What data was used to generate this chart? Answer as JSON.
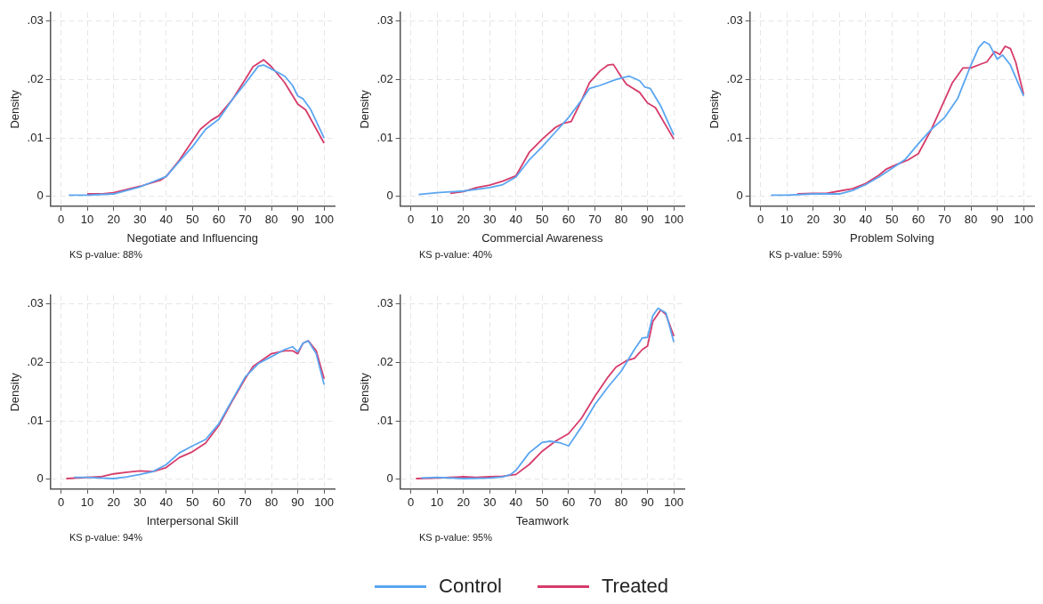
{
  "chart_data": [
    {
      "type": "line",
      "xlabel": "Negotiate and Influencing",
      "ylabel": "Density",
      "annotations": [
        "KS p-value: 88%"
      ],
      "xlim": [
        -4,
        104
      ],
      "ylim": [
        -0.0017,
        0.0315
      ],
      "xticks": [
        0,
        10,
        20,
        30,
        40,
        50,
        60,
        70,
        80,
        90,
        100
      ],
      "yticks": [
        {
          "value": 0,
          "label": "0"
        },
        {
          "value": 0.01,
          "label": ".01"
        },
        {
          "value": 0.02,
          "label": ".02"
        },
        {
          "value": 0.03,
          "label": ".03"
        }
      ],
      "grid": true,
      "legend": "bottom",
      "line_style": "solid",
      "series": [
        {
          "name": "Control",
          "color": "#5aa6f2",
          "x": [
            3,
            10,
            20,
            30,
            35,
            40,
            45,
            50,
            55,
            60,
            65,
            70,
            75,
            77,
            80,
            85,
            88,
            90,
            92,
            95,
            100
          ],
          "values": [
            0.0002,
            0.0002,
            0.0004,
            0.0016,
            0.0025,
            0.0034,
            0.006,
            0.0085,
            0.0115,
            0.0132,
            0.0165,
            0.0193,
            0.0223,
            0.0225,
            0.0218,
            0.0206,
            0.019,
            0.0172,
            0.0167,
            0.0148,
            0.01
          ]
        },
        {
          "name": "Treated",
          "color": "#d63b6a",
          "x": [
            10,
            15,
            20,
            30,
            38,
            40,
            45,
            50,
            53,
            57,
            60,
            65,
            70,
            73,
            77,
            80,
            85,
            90,
            93,
            100
          ],
          "values": [
            0.0004,
            0.0004,
            0.0006,
            0.0017,
            0.0028,
            0.0034,
            0.0062,
            0.0095,
            0.0115,
            0.013,
            0.0138,
            0.0165,
            0.02,
            0.0222,
            0.0234,
            0.0222,
            0.0195,
            0.0158,
            0.0148,
            0.0091
          ]
        }
      ]
    },
    {
      "type": "line",
      "xlabel": "Commercial Awareness",
      "ylabel": "Density",
      "annotations": [
        "KS p-value: 40%"
      ],
      "xlim": [
        -4,
        104
      ],
      "ylim": [
        -0.0017,
        0.0315
      ],
      "xticks": [
        0,
        10,
        20,
        30,
        40,
        50,
        60,
        70,
        80,
        90,
        100
      ],
      "yticks": [
        {
          "value": 0,
          "label": "0"
        },
        {
          "value": 0.01,
          "label": ".01"
        },
        {
          "value": 0.02,
          "label": ".02"
        },
        {
          "value": 0.03,
          "label": ".03"
        }
      ],
      "grid": true,
      "line_style": "solid",
      "series": [
        {
          "color": "#5aa6f2",
          "x": [
            3,
            10,
            20,
            30,
            35,
            40,
            45,
            50,
            55,
            60,
            65,
            68,
            72,
            78,
            83,
            87,
            89,
            91,
            95,
            100
          ],
          "values": [
            0.0003,
            0.0006,
            0.0009,
            0.0015,
            0.002,
            0.0033,
            0.0062,
            0.0085,
            0.011,
            0.0135,
            0.0165,
            0.0185,
            0.019,
            0.02,
            0.0206,
            0.0198,
            0.0187,
            0.0185,
            0.0155,
            0.0105
          ]
        },
        {
          "color": "#d63b6a",
          "x": [
            15,
            20,
            25,
            30,
            35,
            40,
            45,
            50,
            55,
            58,
            61,
            65,
            68,
            72,
            75,
            77,
            80,
            82,
            87,
            90,
            93,
            100
          ],
          "values": [
            0.0005,
            0.0008,
            0.0015,
            0.0019,
            0.0026,
            0.0035,
            0.0075,
            0.0098,
            0.0118,
            0.0125,
            0.0128,
            0.0165,
            0.0195,
            0.0215,
            0.0225,
            0.0226,
            0.0205,
            0.0192,
            0.0178,
            0.016,
            0.0152,
            0.0098
          ]
        }
      ]
    },
    {
      "type": "line",
      "xlabel": "Problem Solving",
      "ylabel": "Density",
      "annotations": [
        "KS p-value: 59%"
      ],
      "xlim": [
        -4,
        104
      ],
      "ylim": [
        -0.0017,
        0.0315
      ],
      "xticks": [
        0,
        10,
        20,
        30,
        40,
        50,
        60,
        70,
        80,
        90,
        100
      ],
      "yticks": [
        {
          "value": 0,
          "label": "0"
        },
        {
          "value": 0.01,
          "label": ".01"
        },
        {
          "value": 0.02,
          "label": ".02"
        },
        {
          "value": 0.03,
          "label": ".03"
        }
      ],
      "grid": true,
      "line_style": "solid",
      "series": [
        {
          "color": "#5aa6f2",
          "x": [
            4,
            10,
            20,
            30,
            35,
            40,
            45,
            50,
            55,
            60,
            65,
            70,
            75,
            80,
            83,
            85,
            87,
            90,
            92,
            95,
            100
          ],
          "values": [
            0.0002,
            0.0002,
            0.0004,
            0.0004,
            0.001,
            0.002,
            0.0033,
            0.0048,
            0.0063,
            0.009,
            0.0115,
            0.0135,
            0.0168,
            0.0225,
            0.0255,
            0.0265,
            0.026,
            0.0235,
            0.0242,
            0.0225,
            0.0172
          ]
        },
        {
          "color": "#d63b6a",
          "x": [
            14,
            20,
            25,
            30,
            35,
            40,
            45,
            48,
            52,
            56,
            60,
            65,
            70,
            73,
            77,
            80,
            84,
            86,
            89,
            91,
            93,
            95,
            97,
            100
          ],
          "values": [
            0.0004,
            0.0005,
            0.0005,
            0.0009,
            0.0013,
            0.0022,
            0.0036,
            0.0047,
            0.0055,
            0.0062,
            0.0073,
            0.0115,
            0.0165,
            0.0195,
            0.022,
            0.022,
            0.0227,
            0.023,
            0.0248,
            0.0243,
            0.0257,
            0.0253,
            0.023,
            0.0175
          ]
        }
      ]
    },
    {
      "type": "line",
      "xlabel": "Interpersonal Skill",
      "ylabel": "Density",
      "annotations": [
        "KS p-value: 94%"
      ],
      "xlim": [
        -4,
        104
      ],
      "ylim": [
        -0.0017,
        0.0315
      ],
      "xticks": [
        0,
        10,
        20,
        30,
        40,
        50,
        60,
        70,
        80,
        90,
        100
      ],
      "yticks": [
        {
          "value": 0,
          "label": "0"
        },
        {
          "value": 0.01,
          "label": ".01"
        },
        {
          "value": 0.02,
          "label": ".02"
        },
        {
          "value": 0.03,
          "label": ".03"
        }
      ],
      "grid": true,
      "line_style": "solid",
      "series": [
        {
          "color": "#5aa6f2",
          "x": [
            5,
            10,
            15,
            20,
            25,
            30,
            35,
            40,
            45,
            50,
            55,
            60,
            65,
            70,
            75,
            80,
            85,
            88,
            90,
            92,
            94,
            97,
            100
          ],
          "values": [
            0.0003,
            0.0003,
            0.0002,
            0.0001,
            0.0004,
            0.0008,
            0.0013,
            0.0025,
            0.0045,
            0.0057,
            0.0068,
            0.0095,
            0.0135,
            0.0175,
            0.0198,
            0.021,
            0.0222,
            0.0227,
            0.0218,
            0.0233,
            0.0237,
            0.0215,
            0.0162
          ]
        },
        {
          "color": "#d63b6a",
          "x": [
            2,
            10,
            15,
            20,
            25,
            30,
            35,
            40,
            45,
            50,
            55,
            60,
            65,
            70,
            73,
            80,
            85,
            88,
            90,
            92,
            94,
            97,
            100
          ],
          "values": [
            0.0001,
            0.0003,
            0.0004,
            0.0009,
            0.0012,
            0.0014,
            0.0013,
            0.002,
            0.0037,
            0.0047,
            0.0062,
            0.0092,
            0.0133,
            0.0172,
            0.0193,
            0.0215,
            0.022,
            0.022,
            0.0215,
            0.0233,
            0.0237,
            0.022,
            0.0172
          ]
        }
      ]
    },
    {
      "type": "line",
      "xlabel": "Teamwork",
      "ylabel": "Density",
      "annotations": [
        "KS p-value: 95%"
      ],
      "xlim": [
        -4,
        104
      ],
      "ylim": [
        -0.0017,
        0.0315
      ],
      "xticks": [
        0,
        10,
        20,
        30,
        40,
        50,
        60,
        70,
        80,
        90,
        100
      ],
      "yticks": [
        {
          "value": 0,
          "label": "0"
        },
        {
          "value": 0.01,
          "label": ".01"
        },
        {
          "value": 0.02,
          "label": ".02"
        },
        {
          "value": 0.03,
          "label": ".03"
        }
      ],
      "grid": true,
      "line_style": "solid",
      "series": [
        {
          "color": "#5aa6f2",
          "x": [
            4,
            10,
            20,
            30,
            35,
            38,
            40,
            45,
            50,
            53,
            57,
            60,
            65,
            70,
            75,
            80,
            85,
            88,
            90,
            92,
            94,
            97,
            100
          ],
          "values": [
            0.0002,
            0.0003,
            0.0001,
            0.0002,
            0.0004,
            0.0008,
            0.0015,
            0.0045,
            0.0063,
            0.0065,
            0.0062,
            0.0057,
            0.009,
            0.0128,
            0.0158,
            0.0185,
            0.0222,
            0.0242,
            0.0243,
            0.028,
            0.0293,
            0.0285,
            0.0235
          ]
        },
        {
          "color": "#d63b6a",
          "x": [
            2,
            10,
            20,
            25,
            30,
            35,
            40,
            45,
            50,
            55,
            60,
            65,
            70,
            75,
            78,
            82,
            85,
            88,
            90,
            92,
            95,
            97,
            100
          ],
          "values": [
            0.0001,
            0.0002,
            0.0004,
            0.0003,
            0.0004,
            0.0005,
            0.0008,
            0.0025,
            0.0048,
            0.0065,
            0.0078,
            0.0105,
            0.0142,
            0.0175,
            0.0192,
            0.0203,
            0.0207,
            0.0222,
            0.0228,
            0.027,
            0.029,
            0.0282,
            0.0245
          ]
        }
      ]
    }
  ]
}
